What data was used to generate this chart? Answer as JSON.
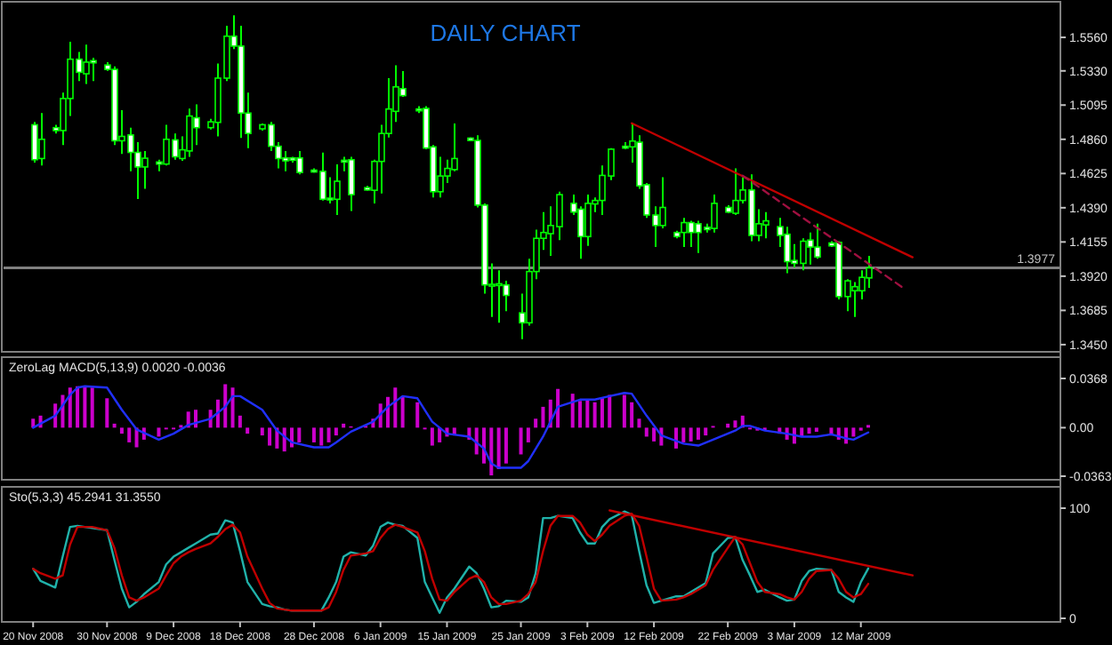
{
  "chart_data": [
    {
      "type": "candlestick",
      "title": "DAILY CHART",
      "color": "#00ff00",
      "x": [
        "2008-11-20",
        "2008-11-21",
        "2008-11-23",
        "2008-11-24",
        "2008-11-25",
        "2008-11-26",
        "2008-11-27",
        "2008-11-28",
        "2008-11-30",
        "2008-12-01",
        "2008-12-02",
        "2008-12-03",
        "2008-12-04",
        "2008-12-05",
        "2008-12-07",
        "2008-12-08",
        "2008-12-09",
        "2008-12-10",
        "2008-12-11",
        "2008-12-12",
        "2008-12-14",
        "2008-12-15",
        "2008-12-16",
        "2008-12-17",
        "2008-12-18",
        "2008-12-19",
        "2008-12-21",
        "2008-12-22",
        "2008-12-23",
        "2008-12-24",
        "2008-12-25",
        "2008-12-26",
        "2008-12-28",
        "2008-12-29",
        "2008-12-30",
        "2008-12-31",
        "2009-01-01",
        "2009-01-02",
        "2009-01-04",
        "2009-01-05",
        "2009-01-06",
        "2009-01-07",
        "2009-01-08",
        "2009-01-09",
        "2009-01-11",
        "2009-01-12",
        "2009-01-13",
        "2009-01-14",
        "2009-01-15",
        "2009-01-16",
        "2009-01-18",
        "2009-01-19",
        "2009-01-20",
        "2009-01-21",
        "2009-01-22",
        "2009-01-23",
        "2009-01-25",
        "2009-01-26",
        "2009-01-27",
        "2009-01-28",
        "2009-01-29",
        "2009-01-30",
        "2009-02-01",
        "2009-02-02",
        "2009-02-03",
        "2009-02-04",
        "2009-02-05",
        "2009-02-06",
        "2009-02-08",
        "2009-02-09",
        "2009-02-10",
        "2009-02-11",
        "2009-02-12",
        "2009-02-13",
        "2009-02-15",
        "2009-02-16",
        "2009-02-17",
        "2009-02-18",
        "2009-02-19",
        "2009-02-20",
        "2009-02-22",
        "2009-02-23",
        "2009-02-24",
        "2009-02-25",
        "2009-02-26",
        "2009-02-27",
        "2009-03-01",
        "2009-03-02",
        "2009-03-03",
        "2009-03-04",
        "2009-03-05",
        "2009-03-06",
        "2009-03-08",
        "2009-03-09",
        "2009-03-10",
        "2009-03-11",
        "2009-03-12",
        "2009-03-13"
      ],
      "ohlc": [
        [
          1.496,
          1.498,
          1.47,
          1.472
        ],
        [
          1.4728,
          1.504,
          1.468,
          1.486
        ],
        [
          1.494,
          1.496,
          1.49,
          1.492
        ],
        [
          1.492,
          1.518,
          1.482,
          1.514
        ],
        [
          1.514,
          1.553,
          1.502,
          1.541
        ],
        [
          1.541,
          1.546,
          1.526,
          1.532
        ],
        [
          1.531,
          1.551,
          1.524,
          1.539
        ],
        [
          1.54,
          1.542,
          1.526,
          1.5385
        ],
        [
          1.537,
          1.539,
          1.533,
          1.534
        ],
        [
          1.534,
          1.536,
          1.482,
          1.485
        ],
        [
          1.485,
          1.506,
          1.476,
          1.488
        ],
        [
          1.489,
          1.494,
          1.464,
          1.477
        ],
        [
          1.477,
          1.484,
          1.445,
          1.467
        ],
        [
          1.467,
          1.478,
          1.452,
          1.473
        ],
        [
          1.4704,
          1.472,
          1.464,
          1.469
        ],
        [
          1.469,
          1.496,
          1.468,
          1.486
        ],
        [
          1.4856,
          1.49,
          1.472,
          1.474
        ],
        [
          1.4728,
          1.488,
          1.4712,
          1.4788
        ],
        [
          1.478,
          1.507,
          1.474,
          1.502
        ],
        [
          1.5008,
          1.51,
          1.482,
          1.494
        ],
        [
          1.494,
          1.5,
          1.4928,
          1.498
        ],
        [
          1.4976,
          1.538,
          1.488,
          1.528
        ],
        [
          1.528,
          1.564,
          1.526,
          1.5568
        ],
        [
          1.5568,
          1.5712,
          1.548,
          1.55
        ],
        [
          1.55,
          1.564,
          1.487,
          1.504
        ],
        [
          1.504,
          1.518,
          1.48,
          1.49
        ],
        [
          1.4932,
          1.4968,
          1.492,
          1.496
        ],
        [
          1.496,
          1.498,
          1.478,
          1.4812
        ],
        [
          1.4812,
          1.484,
          1.466,
          1.4728
        ],
        [
          1.4732,
          1.478,
          1.464,
          1.4712
        ],
        [
          1.4732,
          1.474,
          1.47,
          1.4716
        ],
        [
          1.4732,
          1.478,
          1.462,
          1.4632
        ],
        [
          1.4648,
          1.466,
          1.4632,
          1.4644
        ],
        [
          1.464,
          1.4768,
          1.444,
          1.4448
        ],
        [
          1.4456,
          1.46,
          1.442,
          1.4448
        ],
        [
          1.4448,
          1.4688,
          1.434,
          1.4572
        ],
        [
          1.4716,
          1.474,
          1.464,
          1.4712
        ],
        [
          1.472,
          1.474,
          1.4368,
          1.448
        ],
        [
          1.4528,
          1.454,
          1.4508,
          1.4512
        ],
        [
          1.451,
          1.472,
          1.442,
          1.4708
        ],
        [
          1.4708,
          1.496,
          1.4488,
          1.49
        ],
        [
          1.49,
          1.528,
          1.4872,
          1.5068
        ],
        [
          1.5052,
          1.5368,
          1.498,
          1.522
        ],
        [
          1.5208,
          1.5328,
          1.5152,
          1.516
        ],
        [
          1.5068,
          1.5088,
          1.504,
          1.5056
        ],
        [
          1.5072,
          1.5088,
          1.4792,
          1.48
        ],
        [
          1.4808,
          1.482,
          1.446,
          1.45
        ],
        [
          1.45,
          1.474,
          1.446,
          1.4608
        ],
        [
          1.4608,
          1.472,
          1.456,
          1.466
        ],
        [
          1.4652,
          1.4968,
          1.464,
          1.4728
        ],
        [
          1.4868,
          1.4872,
          1.4848,
          1.4852
        ],
        [
          1.4852,
          1.4888,
          1.4392,
          1.4408
        ],
        [
          1.4408,
          1.442,
          1.38,
          1.386
        ],
        [
          1.3864,
          1.4008,
          1.364,
          1.3864
        ],
        [
          1.386,
          1.396,
          1.36,
          1.3868
        ],
        [
          1.386,
          1.3888,
          1.368,
          1.3788
        ],
        [
          1.3668,
          1.38,
          1.3488,
          1.36
        ],
        [
          1.36,
          1.404,
          1.358,
          1.3952
        ],
        [
          1.3952,
          1.424,
          1.39,
          1.418
        ],
        [
          1.418,
          1.436,
          1.41,
          1.422
        ],
        [
          1.4212,
          1.44,
          1.406,
          1.4268
        ],
        [
          1.426,
          1.45,
          1.4168,
          1.448
        ],
        [
          1.442,
          1.448,
          1.434,
          1.436
        ],
        [
          1.438,
          1.44,
          1.404,
          1.4192
        ],
        [
          1.4192,
          1.448,
          1.4128,
          1.442
        ],
        [
          1.4416,
          1.446,
          1.436,
          1.444
        ],
        [
          1.444,
          1.468,
          1.434,
          1.4612
        ],
        [
          1.4608,
          1.48,
          1.458,
          1.4792
        ],
        [
          1.4812,
          1.484,
          1.4792,
          1.48
        ],
        [
          1.4808,
          1.4972,
          1.47,
          1.4848
        ],
        [
          1.484,
          1.4888,
          1.452,
          1.454
        ],
        [
          1.4548,
          1.456,
          1.432,
          1.434
        ],
        [
          1.434,
          1.44,
          1.412,
          1.4268
        ],
        [
          1.4268,
          1.46,
          1.4248,
          1.4392
        ],
        [
          1.422,
          1.4232,
          1.418,
          1.4192
        ],
        [
          1.422,
          1.432,
          1.412,
          1.4288
        ],
        [
          1.4288,
          1.43,
          1.412,
          1.422
        ],
        [
          1.428,
          1.43,
          1.408,
          1.422
        ],
        [
          1.4256,
          1.428,
          1.422,
          1.424
        ],
        [
          1.4248,
          1.448,
          1.422,
          1.442
        ],
        [
          1.4392,
          1.4408,
          1.4352,
          1.436
        ],
        [
          1.4352,
          1.466,
          1.434,
          1.444
        ],
        [
          1.444,
          1.46,
          1.442,
          1.4512
        ],
        [
          1.4512,
          1.462,
          1.416,
          1.42
        ],
        [
          1.42,
          1.438,
          1.416,
          1.428
        ],
        [
          1.4272,
          1.436,
          1.418,
          1.43
        ],
        [
          1.426,
          1.432,
          1.412,
          1.42
        ],
        [
          1.4208,
          1.426,
          1.394,
          1.402
        ],
        [
          1.4028,
          1.414,
          1.398,
          1.4008
        ],
        [
          1.4008,
          1.418,
          1.396,
          1.416
        ],
        [
          1.4168,
          1.422,
          1.4,
          1.412
        ],
        [
          1.412,
          1.428,
          1.404,
          1.4052
        ],
        [
          1.4148,
          1.416,
          1.412,
          1.4128
        ],
        [
          1.4152,
          1.416,
          1.376,
          1.378
        ],
        [
          1.378,
          1.39,
          1.368,
          1.3888
        ],
        [
          1.382,
          1.388,
          1.364,
          1.3848
        ],
        [
          1.382,
          1.396,
          1.376,
          1.3912
        ],
        [
          1.3908,
          1.406,
          1.384,
          1.3977
        ]
      ],
      "series": [
        {
          "type": "line",
          "color": "#c00000",
          "x": [
            "2009-02-09",
            "2009-03-19"
          ],
          "values": [
            1.497,
            1.405
          ]
        },
        {
          "type": "line",
          "color": "#a01040",
          "line_style": "dashed",
          "x": [
            "2009-02-24",
            "2009-03-18"
          ],
          "values": [
            1.461,
            1.383
          ]
        }
      ],
      "ref_lines": [
        {
          "axis": "y",
          "value": 1.3977,
          "label": "1.3977",
          "color": "#808080"
        }
      ],
      "xlim": [
        "2008-11-16",
        "2009-04-08"
      ],
      "ylim": [
        1.3425,
        1.578
      ],
      "yticks": [
        {
          "value": 1.556,
          "label": "1.5560"
        },
        {
          "value": 1.533,
          "label": "1.5330"
        },
        {
          "value": 1.5095,
          "label": "1.5095"
        },
        {
          "value": 1.486,
          "label": "1.4860"
        },
        {
          "value": 1.4625,
          "label": "1.4625"
        },
        {
          "value": 1.439,
          "label": "1.4390"
        },
        {
          "value": 1.4155,
          "label": "1.4155"
        },
        {
          "value": 1.392,
          "label": "1.3920"
        },
        {
          "value": 1.3685,
          "label": "1.3685"
        },
        {
          "value": 1.345,
          "label": "1.3450"
        }
      ],
      "tick_labels": "y"
    },
    {
      "type": "bar",
      "title": "ZeroLag MACD(5,13,9) 0.0020 -0.0036",
      "x": [
        "2008-11-20",
        "2008-11-21",
        "2008-11-23",
        "2008-11-24",
        "2008-11-25",
        "2008-11-26",
        "2008-11-27",
        "2008-11-28",
        "2008-11-30",
        "2008-12-01",
        "2008-12-02",
        "2008-12-03",
        "2008-12-04",
        "2008-12-05",
        "2008-12-07",
        "2008-12-08",
        "2008-12-09",
        "2008-12-10",
        "2008-12-11",
        "2008-12-12",
        "2008-12-14",
        "2008-12-15",
        "2008-12-16",
        "2008-12-17",
        "2008-12-18",
        "2008-12-19",
        "2008-12-21",
        "2008-12-22",
        "2008-12-23",
        "2008-12-24",
        "2008-12-25",
        "2008-12-26",
        "2008-12-28",
        "2008-12-29",
        "2008-12-30",
        "2008-12-31",
        "2009-01-01",
        "2009-01-02",
        "2009-01-04",
        "2009-01-05",
        "2009-01-06",
        "2009-01-07",
        "2009-01-08",
        "2009-01-09",
        "2009-01-11",
        "2009-01-12",
        "2009-01-13",
        "2009-01-14",
        "2009-01-15",
        "2009-01-16",
        "2009-01-18",
        "2009-01-19",
        "2009-01-20",
        "2009-01-21",
        "2009-01-22",
        "2009-01-23",
        "2009-01-25",
        "2009-01-26",
        "2009-01-27",
        "2009-01-28",
        "2009-01-29",
        "2009-01-30",
        "2009-02-01",
        "2009-02-02",
        "2009-02-03",
        "2009-02-04",
        "2009-02-05",
        "2009-02-06",
        "2009-02-08",
        "2009-02-09",
        "2009-02-10",
        "2009-02-11",
        "2009-02-12",
        "2009-02-13",
        "2009-02-15",
        "2009-02-16",
        "2009-02-17",
        "2009-02-18",
        "2009-02-19",
        "2009-02-20",
        "2009-02-22",
        "2009-02-23",
        "2009-02-24",
        "2009-02-25",
        "2009-02-26",
        "2009-02-27",
        "2009-03-01",
        "2009-03-02",
        "2009-03-03",
        "2009-03-04",
        "2009-03-05",
        "2009-03-06",
        "2009-03-08",
        "2009-03-09",
        "2009-03-10",
        "2009-03-11",
        "2009-03-12",
        "2009-03-13"
      ],
      "series": [
        {
          "color": "#cc00cc",
          "values": [
            0.0067,
            0.009,
            0.018,
            0.0245,
            0.03,
            0.031,
            0.031,
            0.03,
            0.022,
            0.003,
            -0.0045,
            -0.011,
            -0.0147,
            -0.009,
            -0.0067,
            -0.0013,
            -0.0013,
            0.002,
            0.012,
            0.0134,
            0.0134,
            0.021,
            0.0325,
            0.03,
            0.009,
            -0.0045,
            -0.0058,
            -0.0134,
            -0.0156,
            -0.0178,
            -0.0147,
            -0.011,
            -0.011,
            -0.0134,
            -0.011,
            -0.0058,
            0.003,
            0.001,
            0.0013,
            0.0067,
            0.018,
            0.023,
            0.03,
            0.0236,
            0.019,
            -0.0013,
            -0.0134,
            -0.011,
            -0.0067,
            -0.0058,
            -0.009,
            -0.02,
            -0.0268,
            -0.0357,
            -0.031,
            -0.0268,
            -0.02,
            -0.011,
            0.0067,
            0.0156,
            0.021,
            0.029,
            0.0254,
            0.02,
            0.021,
            0.019,
            0.022,
            0.0245,
            0.0245,
            0.019,
            0.0067,
            -0.0067,
            -0.0103,
            -0.0134,
            -0.0156,
            -0.011,
            -0.0103,
            -0.009,
            -0.0058,
            0.0013,
            0.003,
            0.0054,
            0.009,
            -0.0013,
            -0.0022,
            -0.0022,
            -0.0045,
            -0.009,
            -0.012,
            -0.0067,
            -0.0045,
            -0.0031,
            -0.0058,
            -0.009,
            -0.012,
            -0.0067,
            -0.0022,
            0.002
          ]
        },
        {
          "type": "line",
          "color": "#2030ff",
          "x": [
            "2008-11-20",
            "2008-11-23",
            "2008-11-25",
            "2008-11-26",
            "2008-11-27",
            "2008-11-30",
            "2008-12-02",
            "2008-12-04",
            "2008-12-07",
            "2008-12-09",
            "2008-12-11",
            "2008-12-14",
            "2008-12-16",
            "2008-12-17",
            "2008-12-18",
            "2008-12-21",
            "2008-12-23",
            "2008-12-25",
            "2008-12-28",
            "2008-12-30",
            "2008-12-31",
            "2009-01-02",
            "2009-01-05",
            "2009-01-07",
            "2009-01-09",
            "2009-01-11",
            "2009-01-13",
            "2009-01-15",
            "2009-01-18",
            "2009-01-20",
            "2009-01-21",
            "2009-01-22",
            "2009-01-25",
            "2009-01-26",
            "2009-01-28",
            "2009-01-30",
            "2009-02-02",
            "2009-02-04",
            "2009-02-06",
            "2009-02-08",
            "2009-02-09",
            "2009-02-11",
            "2009-02-13",
            "2009-02-16",
            "2009-02-18",
            "2009-02-20",
            "2009-02-23",
            "2009-02-24",
            "2009-02-25",
            "2009-02-27",
            "2009-03-02",
            "2009-03-04",
            "2009-03-06",
            "2009-03-08",
            "2009-03-10",
            "2009-03-11",
            "2009-03-13"
          ],
          "values": [
            0,
            0.009,
            0.0245,
            0.03,
            0.031,
            0.03,
            0.0134,
            -0.0013,
            -0.009,
            -0.0045,
            0.002,
            0.0067,
            0.0156,
            0.0236,
            0.0236,
            0.0134,
            -0.0022,
            -0.011,
            -0.0147,
            -0.0147,
            -0.011,
            -0.003,
            0.0045,
            0.0156,
            0.0236,
            0.022,
            0.0045,
            -0.0045,
            -0.0067,
            -0.0156,
            -0.0268,
            -0.03,
            -0.03,
            -0.025,
            -0.0067,
            0.0156,
            0.021,
            0.021,
            0.0236,
            0.026,
            0.0254,
            0.009,
            -0.0058,
            -0.012,
            -0.0134,
            -0.009,
            -0.0022,
            0.0013,
            0.0013,
            -0.0022,
            -0.0045,
            -0.0067,
            -0.0067,
            -0.005,
            -0.008,
            -0.009,
            -0.0036
          ]
        }
      ],
      "xlim": [
        "2008-11-16",
        "2009-04-08"
      ],
      "ylim": [
        -0.0363,
        0.0368
      ],
      "yticks": [
        0.0368,
        {
          "value": 0,
          "label": "0.00"
        },
        -0.0363
      ],
      "tick_labels": "y"
    },
    {
      "type": "line",
      "title": "Sto(5,3,3) 45.2941 31.3550",
      "x": [
        "2008-11-20",
        "2008-11-21",
        "2008-11-23",
        "2008-11-24",
        "2008-11-25",
        "2008-11-26",
        "2008-11-27",
        "2008-11-28",
        "2008-11-30",
        "2008-12-01",
        "2008-12-02",
        "2008-12-03",
        "2008-12-04",
        "2008-12-05",
        "2008-12-07",
        "2008-12-08",
        "2008-12-09",
        "2008-12-10",
        "2008-12-11",
        "2008-12-12",
        "2008-12-14",
        "2008-12-15",
        "2008-12-16",
        "2008-12-17",
        "2008-12-18",
        "2008-12-19",
        "2008-12-21",
        "2008-12-22",
        "2008-12-23",
        "2008-12-24",
        "2008-12-25",
        "2008-12-26",
        "2008-12-28",
        "2008-12-29",
        "2008-12-30",
        "2008-12-31",
        "2009-01-01",
        "2009-01-02",
        "2009-01-04",
        "2009-01-05",
        "2009-01-06",
        "2009-01-07",
        "2009-01-08",
        "2009-01-09",
        "2009-01-11",
        "2009-01-12",
        "2009-01-13",
        "2009-01-14",
        "2009-01-15",
        "2009-01-16",
        "2009-01-18",
        "2009-01-19",
        "2009-01-20",
        "2009-01-21",
        "2009-01-22",
        "2009-01-23",
        "2009-01-25",
        "2009-01-26",
        "2009-01-27",
        "2009-01-28",
        "2009-01-29",
        "2009-01-30",
        "2009-02-01",
        "2009-02-02",
        "2009-02-03",
        "2009-02-04",
        "2009-02-05",
        "2009-02-06",
        "2009-02-08",
        "2009-02-09",
        "2009-02-10",
        "2009-02-11",
        "2009-02-12",
        "2009-02-13",
        "2009-02-15",
        "2009-02-16",
        "2009-02-17",
        "2009-02-18",
        "2009-02-19",
        "2009-02-20",
        "2009-02-22",
        "2009-02-23",
        "2009-02-24",
        "2009-02-25",
        "2009-02-26",
        "2009-02-27",
        "2009-03-01",
        "2009-03-02",
        "2009-03-03",
        "2009-03-04",
        "2009-03-05",
        "2009-03-06",
        "2009-03-08",
        "2009-03-09",
        "2009-03-10",
        "2009-03-11",
        "2009-03-12",
        "2009-03-13"
      ],
      "series": [
        {
          "color": "#20b2aa",
          "values": [
            45,
            34,
            28,
            56,
            83,
            84,
            83,
            82,
            80,
            53,
            27,
            10,
            15,
            22,
            33,
            49,
            56,
            60,
            64,
            68,
            76,
            77,
            89,
            87,
            61,
            33,
            13,
            11,
            10,
            8,
            7,
            7,
            7,
            7,
            19,
            33,
            56,
            60,
            57,
            66,
            83,
            87,
            85,
            84,
            73,
            33,
            19,
            5,
            19,
            27,
            47,
            41,
            27,
            10,
            11,
            16,
            15,
            19,
            41,
            91,
            91,
            93,
            91,
            78,
            68,
            68,
            83,
            90,
            97,
            94,
            61,
            30,
            14,
            16,
            20,
            20,
            24,
            28,
            32,
            59,
            73,
            74,
            53,
            39,
            24,
            26,
            19,
            16,
            17,
            34,
            43,
            45,
            44,
            24,
            19,
            15,
            33,
            45.2941
          ]
        },
        {
          "color": "#c00000",
          "values": [
            45,
            41,
            36,
            39,
            67,
            83,
            83,
            83,
            80,
            64,
            39,
            19,
            16,
            19,
            27,
            39,
            50,
            56,
            60,
            63,
            68,
            74,
            81,
            85,
            78,
            56,
            27,
            14,
            9,
            8,
            7,
            7,
            7,
            7,
            10,
            24,
            44,
            57,
            59,
            61,
            73,
            81,
            85,
            83,
            78,
            61,
            36,
            17,
            16,
            24,
            36,
            39,
            33,
            19,
            13,
            13,
            16,
            22,
            33,
            61,
            84,
            93,
            93,
            87,
            76,
            70,
            76,
            84,
            93,
            95,
            84,
            56,
            27,
            16,
            17,
            19,
            22,
            26,
            30,
            44,
            64,
            74,
            67,
            50,
            33,
            24,
            22,
            19,
            17,
            24,
            36,
            43,
            44,
            36,
            24,
            19,
            22,
            31.355
          ]
        },
        {
          "color": "#c00000",
          "x": [
            "2009-02-06",
            "2009-03-19"
          ],
          "values": [
            98,
            39
          ]
        }
      ],
      "xlim": [
        "2008-11-16",
        "2009-04-08"
      ],
      "ylim": [
        0,
        100
      ],
      "yticks": [
        0,
        100
      ],
      "xticks": [
        {
          "value": "2008-11-20",
          "label": "20 Nov 2008"
        },
        {
          "value": "2008-11-30",
          "label": "30 Nov 2008"
        },
        {
          "value": "2008-12-09",
          "label": "9 Dec 2008"
        },
        {
          "value": "2008-12-18",
          "label": "18 Dec 2008"
        },
        {
          "value": "2008-12-28",
          "label": "28 Dec 2008"
        },
        {
          "value": "2009-01-06",
          "label": "6 Jan 2009"
        },
        {
          "value": "2009-01-15",
          "label": "15 Jan 2009"
        },
        {
          "value": "2009-01-25",
          "label": "25 Jan 2009"
        },
        {
          "value": "2009-02-03",
          "label": "3 Feb 2009"
        },
        {
          "value": "2009-02-12",
          "label": "12 Feb 2009"
        },
        {
          "value": "2009-02-22",
          "label": "22 Feb 2009"
        },
        {
          "value": "2009-03-03",
          "label": "3 Mar 2009"
        },
        {
          "value": "2009-03-12",
          "label": "12 Mar 2009"
        }
      ]
    }
  ]
}
